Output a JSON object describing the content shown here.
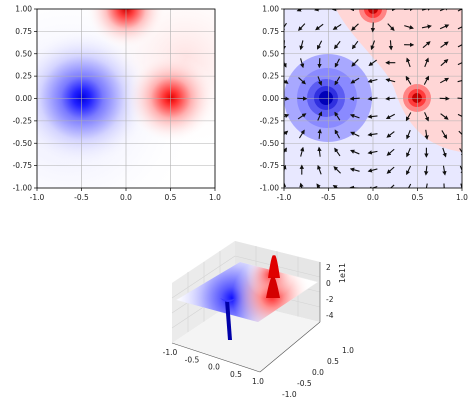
{
  "chart_data": [
    {
      "type": "heatmap",
      "panel": "top-left",
      "description_kind": "potential heatmap (bwr colormap)",
      "xlim": [
        -1.0,
        1.0
      ],
      "ylim": [
        -1.0,
        1.0
      ],
      "xticks": [
        "-1.0",
        "-0.5",
        "0.0",
        "0.5",
        "1.0"
      ],
      "yticks": [
        "1.00",
        "0.75",
        "0.50",
        "0.25",
        "0.00",
        "-0.25",
        "-0.50",
        "-0.75",
        "-1.00"
      ],
      "xtick_values": [
        -1.0,
        -0.5,
        0.0,
        0.5,
        1.0
      ],
      "ytick_values": [
        1.0,
        0.75,
        0.5,
        0.25,
        0.0,
        -0.25,
        -0.5,
        -0.75,
        -1.0
      ],
      "grid": true,
      "charges": [
        {
          "x": -0.5,
          "y": 0.0,
          "sign": "negative",
          "color": "#0000ff"
        },
        {
          "x": 0.5,
          "y": 0.0,
          "sign": "positive",
          "color": "#ff0000"
        },
        {
          "x": 0.0,
          "y": 1.0,
          "sign": "positive",
          "color": "#ff0000"
        }
      ]
    },
    {
      "type": "heatmap",
      "panel": "top-right",
      "description_kind": "filled contours with quiver arrows",
      "xlim": [
        -1.0,
        1.0
      ],
      "ylim": [
        -1.0,
        1.0
      ],
      "xticks": [
        "-1.0",
        "-0.5",
        "0.0",
        "0.5",
        "1.0"
      ],
      "yticks": [
        "1.00",
        "0.75",
        "0.50",
        "0.25",
        "0.00",
        "-0.25",
        "-0.50",
        "-0.75",
        "-1.00"
      ],
      "xtick_values": [
        -1.0,
        -0.5,
        0.0,
        0.5,
        1.0
      ],
      "ytick_values": [
        1.0,
        0.75,
        0.5,
        0.25,
        0.0,
        -0.25,
        -0.5,
        -0.75,
        -1.0
      ],
      "grid": true,
      "quiver_grid_steps": 11
    },
    {
      "type": "surface",
      "panel": "bottom",
      "xticks": [
        "-1.0",
        "-0.5",
        "0.0",
        "0.5",
        "1.0"
      ],
      "yticks": [
        "-1.0",
        "-0.5",
        "0.0",
        "0.5",
        "1.0"
      ],
      "zticks": [
        "2",
        "0",
        "-2",
        "-4"
      ],
      "z_offset_label": "1e11",
      "xlim": [
        -1.0,
        1.0
      ],
      "ylim": [
        -1.0,
        1.0
      ],
      "zlim": [
        -5,
        2.5
      ]
    }
  ],
  "colors": {
    "negative": "#0000ff",
    "positive": "#ff0000",
    "neutral": "#ffffff",
    "grid": "#b0b0b0",
    "arrow": "#111111"
  }
}
